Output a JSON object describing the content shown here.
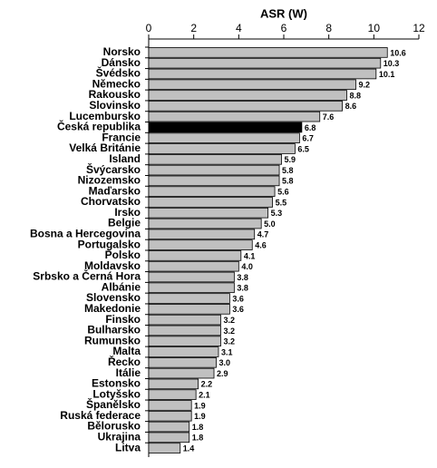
{
  "chart_data": {
    "type": "barh",
    "title": "ASR (W)",
    "categories": [
      "Norsko",
      "Dánsko",
      "Švédsko",
      "Německo",
      "Rakousko",
      "Slovinsko",
      "Lucembursko",
      "Česká republika",
      "Francie",
      "Velká Británie",
      "Island",
      "Švýcarsko",
      "Nizozemsko",
      "Maďarsko",
      "Chorvatsko",
      "Irsko",
      "Belgie",
      "Bosna a Hercegovina",
      "Portugalsko",
      "Polsko",
      "Moldavsko",
      "Srbsko a Černá Hora",
      "Albánie",
      "Slovensko",
      "Makedonie",
      "Finsko",
      "Bulharsko",
      "Rumunsko",
      "Malta",
      "Řecko",
      "Itálie",
      "Estonsko",
      "Lotyšsko",
      "Španělsko",
      "Ruská federace",
      "Bělorusko",
      "Ukrajina",
      "Litva"
    ],
    "values": [
      10.6,
      10.3,
      10.1,
      9.2,
      8.8,
      8.6,
      7.6,
      6.8,
      6.7,
      6.5,
      5.9,
      5.8,
      5.8,
      5.6,
      5.5,
      5.3,
      5.0,
      4.7,
      4.6,
      4.1,
      4.0,
      3.8,
      3.8,
      3.6,
      3.6,
      3.2,
      3.2,
      3.2,
      3.1,
      3.0,
      2.9,
      2.2,
      2.1,
      1.9,
      1.9,
      1.8,
      1.8,
      1.4
    ],
    "value_labels": [
      "10.6",
      "10.3",
      "10.1",
      "9.2",
      "8.8",
      "8.6",
      "7.6",
      "6.8",
      "6.7",
      "6.5",
      "5.9",
      "5.8",
      "5.8",
      "5.6",
      "5.5",
      "5.3",
      "5.0",
      "4.7",
      "4.6",
      "4.1",
      "4.0",
      "3.8",
      "3.8",
      "3.6",
      "3.6",
      "3.2",
      "3.2",
      "3.2",
      "3.1",
      "3.0",
      "2.9",
      "2.2",
      "2.1",
      "1.9",
      "1.9",
      "1.8",
      "1.8",
      "1.4"
    ],
    "colors": [
      "#c0c0c0",
      "#c0c0c0",
      "#c0c0c0",
      "#c0c0c0",
      "#c0c0c0",
      "#c0c0c0",
      "#c0c0c0",
      "#000000",
      "#c0c0c0",
      "#c0c0c0",
      "#c0c0c0",
      "#c0c0c0",
      "#c0c0c0",
      "#c0c0c0",
      "#c0c0c0",
      "#c0c0c0",
      "#c0c0c0",
      "#c0c0c0",
      "#c0c0c0",
      "#c0c0c0",
      "#c0c0c0",
      "#c0c0c0",
      "#c0c0c0",
      "#c0c0c0",
      "#c0c0c0",
      "#c0c0c0",
      "#c0c0c0",
      "#c0c0c0",
      "#c0c0c0",
      "#c0c0c0",
      "#c0c0c0",
      "#c0c0c0",
      "#c0c0c0",
      "#c0c0c0",
      "#c0c0c0",
      "#c0c0c0",
      "#c0c0c0",
      "#c0c0c0"
    ],
    "xlim": [
      0,
      12
    ],
    "xticks": [
      0,
      2,
      4,
      6,
      8,
      10,
      12
    ],
    "grid": false
  }
}
